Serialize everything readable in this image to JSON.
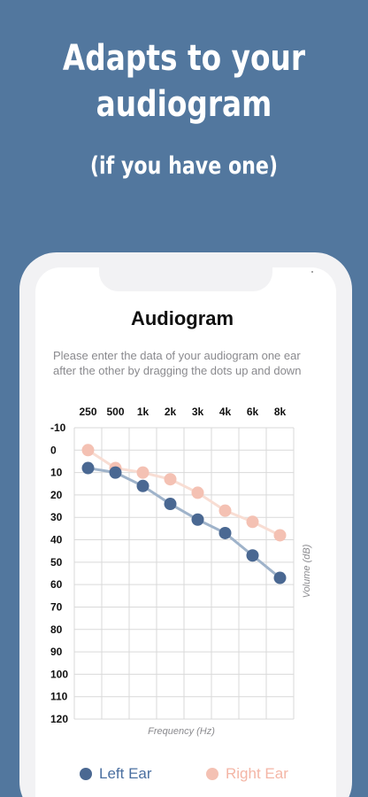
{
  "promo": {
    "headline_line1": "Adapts to your",
    "headline_line2": "audiogram",
    "subhead": "(if you have one)"
  },
  "screen": {
    "title": "Audiogram",
    "instructions": "Please enter the data of your audiogram one ear after the other by dragging the dots up and down"
  },
  "legend": {
    "left_label": "Left Ear",
    "right_label": "Right Ear"
  },
  "colors": {
    "background": "#52779e",
    "left_ear": "#4a6892",
    "left_ear_line": "#9fb3ca",
    "right_ear": "#f4c1b3",
    "right_ear_line": "#f8ddd3",
    "grid": "#d9d9d9"
  },
  "chart_data": {
    "type": "line",
    "categories": [
      "250",
      "500",
      "1k",
      "2k",
      "3k",
      "4k",
      "6k",
      "8k"
    ],
    "y_ticks": [
      "-10",
      "0",
      "10",
      "20",
      "30",
      "40",
      "50",
      "60",
      "70",
      "80",
      "90",
      "100",
      "110",
      "120"
    ],
    "ylim": [
      -10,
      120
    ],
    "y_inverted": true,
    "xlabel": "Frequency (Hz)",
    "ylabel": "Volume (dB)",
    "grid": true,
    "legend_position": "bottom",
    "series": [
      {
        "name": "Left Ear",
        "values": [
          8,
          10,
          16,
          24,
          31,
          37,
          47,
          57
        ]
      },
      {
        "name": "Right Ear",
        "values": [
          0,
          8,
          10,
          13,
          19,
          27,
          32,
          38
        ]
      }
    ]
  }
}
